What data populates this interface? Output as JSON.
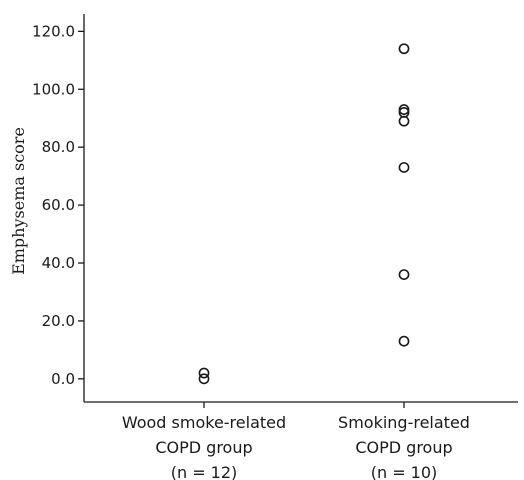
{
  "chart_data": {
    "type": "scatter",
    "title": "",
    "ylabel": "Emphysema score",
    "xlabel": "",
    "ylim": [
      -8,
      126
    ],
    "yticks": [
      0,
      20,
      40,
      60,
      80,
      100,
      120
    ],
    "ytick_labels": [
      "0.0",
      "20.0",
      "40.0",
      "60.0",
      "80.0",
      "100.0",
      "120.0"
    ],
    "grid": false,
    "legend": "none",
    "categories": [
      {
        "lines": [
          "Wood smoke-related",
          "COPD group",
          "(n = 12)"
        ]
      },
      {
        "lines": [
          "Smoking-related",
          "COPD group",
          "(n = 10)"
        ]
      }
    ],
    "series": [
      {
        "category_index": 0,
        "values": [
          0,
          2
        ]
      },
      {
        "category_index": 1,
        "values": [
          13,
          36,
          73,
          89,
          92,
          93,
          114
        ]
      }
    ]
  }
}
